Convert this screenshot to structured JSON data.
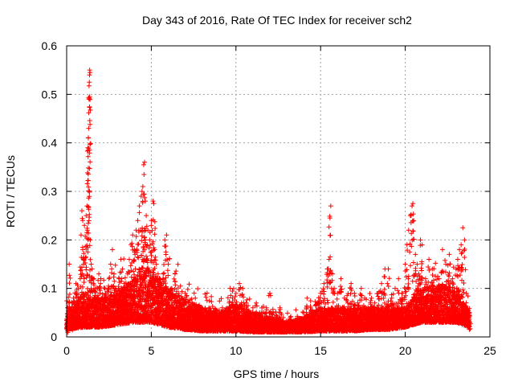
{
  "chart_data": {
    "type": "scatter",
    "title": "Day 343 of 2016, Rate Of TEC Index for receiver sch2",
    "xlabel": "GPS time / hours",
    "ylabel": "ROTI / TECUs",
    "xlim": [
      0,
      25
    ],
    "ylim": [
      0,
      0.6
    ],
    "x_ticks": [
      0,
      5,
      10,
      15,
      20,
      25
    ],
    "x_tick_labels": [
      "0",
      "5",
      "10",
      "15",
      "20",
      "25"
    ],
    "y_ticks": [
      0,
      0.1,
      0.2,
      0.3,
      0.4,
      0.5,
      0.6
    ],
    "y_tick_labels": [
      "0",
      "0.1",
      "0.2",
      "0.3",
      "0.4",
      "0.5",
      "0.6"
    ],
    "grid": true,
    "marker": "+",
    "colors": {
      "points": "#ff0000",
      "grid": "#a0a0a0",
      "axes": "#000000"
    },
    "series": [
      {
        "name": "ROTI",
        "points": [
          [
            0.05,
            0.02
          ],
          [
            0.1,
            0.07
          ],
          [
            0.15,
            0.15
          ],
          [
            0.2,
            0.04
          ],
          [
            0.3,
            0.03
          ],
          [
            0.4,
            0.08
          ],
          [
            0.5,
            0.06
          ],
          [
            0.55,
            0.11
          ],
          [
            0.6,
            0.05
          ],
          [
            0.7,
            0.1
          ],
          [
            0.8,
            0.12
          ],
          [
            0.85,
            0.21
          ],
          [
            0.9,
            0.26
          ],
          [
            0.95,
            0.18
          ],
          [
            1.0,
            0.15
          ],
          [
            1.05,
            0.23
          ],
          [
            1.1,
            0.09
          ],
          [
            1.15,
            0.25
          ],
          [
            1.2,
            0.27
          ],
          [
            1.22,
            0.22
          ],
          [
            1.25,
            0.39
          ],
          [
            1.27,
            0.385
          ],
          [
            1.28,
            0.41
          ],
          [
            1.3,
            0.43
          ],
          [
            1.32,
            0.49
          ],
          [
            1.34,
            0.525
          ],
          [
            1.35,
            0.54
          ],
          [
            1.36,
            0.55
          ],
          [
            1.38,
            0.545
          ],
          [
            1.4,
            0.2
          ],
          [
            1.45,
            0.15
          ],
          [
            1.5,
            0.14
          ],
          [
            1.6,
            0.12
          ],
          [
            1.7,
            0.1
          ],
          [
            1.8,
            0.08
          ],
          [
            1.9,
            0.13
          ],
          [
            2.0,
            0.11
          ],
          [
            2.1,
            0.08
          ],
          [
            2.2,
            0.06
          ],
          [
            2.3,
            0.09
          ],
          [
            2.4,
            0.07
          ],
          [
            2.5,
            0.12
          ],
          [
            2.6,
            0.15
          ],
          [
            2.7,
            0.18
          ],
          [
            2.8,
            0.13
          ],
          [
            2.9,
            0.1
          ],
          [
            3.0,
            0.09
          ],
          [
            3.1,
            0.12
          ],
          [
            3.2,
            0.16
          ],
          [
            3.3,
            0.14
          ],
          [
            3.4,
            0.11
          ],
          [
            3.5,
            0.1
          ],
          [
            3.6,
            0.13
          ],
          [
            3.7,
            0.16
          ],
          [
            3.8,
            0.19
          ],
          [
            3.9,
            0.21
          ],
          [
            4.0,
            0.18
          ],
          [
            4.1,
            0.22
          ],
          [
            4.2,
            0.24
          ],
          [
            4.3,
            0.27
          ],
          [
            4.4,
            0.29
          ],
          [
            4.45,
            0.3
          ],
          [
            4.5,
            0.31
          ],
          [
            4.55,
            0.355
          ],
          [
            4.6,
            0.36
          ],
          [
            4.65,
            0.28
          ],
          [
            4.7,
            0.25
          ],
          [
            4.8,
            0.22
          ],
          [
            4.9,
            0.2
          ],
          [
            5.0,
            0.24
          ],
          [
            5.1,
            0.28
          ],
          [
            5.15,
            0.275
          ],
          [
            5.2,
            0.18
          ],
          [
            5.3,
            0.15
          ],
          [
            5.4,
            0.13
          ],
          [
            5.5,
            0.12
          ],
          [
            5.6,
            0.11
          ],
          [
            5.7,
            0.13
          ],
          [
            5.8,
            0.2
          ],
          [
            5.9,
            0.21
          ],
          [
            6.0,
            0.15
          ],
          [
            6.2,
            0.1
          ],
          [
            6.4,
            0.13
          ],
          [
            6.6,
            0.09
          ],
          [
            6.8,
            0.08
          ],
          [
            7.0,
            0.09
          ],
          [
            7.2,
            0.06
          ],
          [
            7.4,
            0.07
          ],
          [
            7.6,
            0.08
          ],
          [
            7.8,
            0.06
          ],
          [
            8.0,
            0.05
          ],
          [
            8.2,
            0.04
          ],
          [
            8.4,
            0.06
          ],
          [
            8.6,
            0.05
          ],
          [
            8.8,
            0.04
          ],
          [
            9.0,
            0.05
          ],
          [
            9.2,
            0.06
          ],
          [
            9.4,
            0.05
          ],
          [
            9.6,
            0.07
          ],
          [
            9.8,
            0.08
          ],
          [
            10.0,
            0.09
          ],
          [
            10.2,
            0.11
          ],
          [
            10.4,
            0.1
          ],
          [
            10.6,
            0.07
          ],
          [
            10.8,
            0.05
          ],
          [
            11.0,
            0.06
          ],
          [
            11.2,
            0.07
          ],
          [
            11.4,
            0.05
          ],
          [
            11.6,
            0.04
          ],
          [
            11.8,
            0.06
          ],
          [
            12.0,
            0.09
          ],
          [
            12.2,
            0.05
          ],
          [
            12.4,
            0.04
          ],
          [
            12.6,
            0.06
          ],
          [
            12.8,
            0.04
          ],
          [
            13.0,
            0.03
          ],
          [
            13.2,
            0.04
          ],
          [
            13.4,
            0.03
          ],
          [
            13.6,
            0.02
          ],
          [
            13.8,
            0.03
          ],
          [
            14.0,
            0.05
          ],
          [
            14.2,
            0.08
          ],
          [
            14.4,
            0.06
          ],
          [
            14.6,
            0.05
          ],
          [
            14.8,
            0.07
          ],
          [
            15.0,
            0.09
          ],
          [
            15.2,
            0.11
          ],
          [
            15.4,
            0.14
          ],
          [
            15.5,
            0.16
          ],
          [
            15.55,
            0.245
          ],
          [
            15.6,
            0.27
          ],
          [
            15.7,
            0.13
          ],
          [
            15.8,
            0.1
          ],
          [
            16.0,
            0.09
          ],
          [
            16.2,
            0.12
          ],
          [
            16.4,
            0.08
          ],
          [
            16.6,
            0.07
          ],
          [
            16.8,
            0.11
          ],
          [
            17.0,
            0.09
          ],
          [
            17.2,
            0.07
          ],
          [
            17.4,
            0.1
          ],
          [
            17.6,
            0.08
          ],
          [
            17.8,
            0.06
          ],
          [
            18.0,
            0.08
          ],
          [
            18.2,
            0.07
          ],
          [
            18.4,
            0.09
          ],
          [
            18.6,
            0.11
          ],
          [
            18.8,
            0.14
          ],
          [
            19.0,
            0.14
          ],
          [
            19.2,
            0.08
          ],
          [
            19.4,
            0.1
          ],
          [
            19.6,
            0.12
          ],
          [
            19.8,
            0.09
          ],
          [
            20.0,
            0.15
          ],
          [
            20.1,
            0.19
          ],
          [
            20.2,
            0.22
          ],
          [
            20.3,
            0.25
          ],
          [
            20.4,
            0.27
          ],
          [
            20.45,
            0.275
          ],
          [
            20.5,
            0.24
          ],
          [
            20.6,
            0.17
          ],
          [
            20.7,
            0.15
          ],
          [
            20.8,
            0.13
          ],
          [
            20.9,
            0.2
          ],
          [
            21.0,
            0.19
          ],
          [
            21.2,
            0.12
          ],
          [
            21.4,
            0.16
          ],
          [
            21.6,
            0.14
          ],
          [
            21.8,
            0.1
          ],
          [
            22.0,
            0.12
          ],
          [
            22.2,
            0.18
          ],
          [
            22.4,
            0.15
          ],
          [
            22.6,
            0.17
          ],
          [
            22.8,
            0.12
          ],
          [
            23.0,
            0.14
          ],
          [
            23.1,
            0.16
          ],
          [
            23.2,
            0.18
          ],
          [
            23.3,
            0.19
          ],
          [
            23.4,
            0.225
          ],
          [
            23.5,
            0.2
          ],
          [
            23.6,
            0.09
          ],
          [
            23.7,
            0.05
          ],
          [
            23.8,
            0.03
          ]
        ],
        "baseline": [
          [
            0,
            0.015,
            0.05
          ],
          [
            1,
            0.02,
            0.09
          ],
          [
            2,
            0.02,
            0.08
          ],
          [
            3,
            0.025,
            0.09
          ],
          [
            4,
            0.03,
            0.12
          ],
          [
            5,
            0.03,
            0.14
          ],
          [
            6,
            0.02,
            0.1
          ],
          [
            7,
            0.015,
            0.08
          ],
          [
            8,
            0.012,
            0.06
          ],
          [
            9,
            0.012,
            0.05
          ],
          [
            10,
            0.012,
            0.07
          ],
          [
            11,
            0.01,
            0.05
          ],
          [
            12,
            0.01,
            0.04
          ],
          [
            13,
            0.01,
            0.03
          ],
          [
            14,
            0.01,
            0.04
          ],
          [
            15,
            0.012,
            0.06
          ],
          [
            16,
            0.012,
            0.06
          ],
          [
            17,
            0.012,
            0.06
          ],
          [
            18,
            0.015,
            0.06
          ],
          [
            19,
            0.015,
            0.06
          ],
          [
            20,
            0.02,
            0.06
          ],
          [
            21,
            0.03,
            0.1
          ],
          [
            22,
            0.03,
            0.11
          ],
          [
            23,
            0.03,
            0.1
          ],
          [
            23.8,
            0.02,
            0.05
          ]
        ]
      }
    ]
  }
}
